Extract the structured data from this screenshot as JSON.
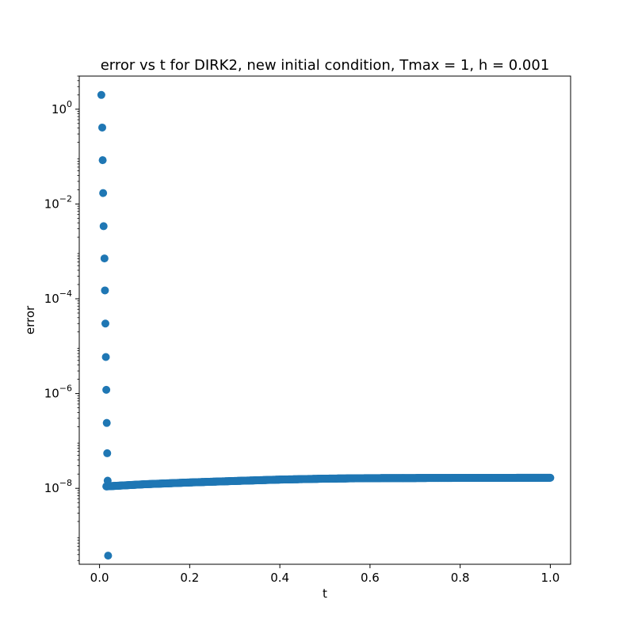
{
  "chart_data": {
    "type": "scatter",
    "title": "error vs t for DIRK2, new initial condition, Tmax = 1, h = 0.001",
    "xlabel": "t",
    "ylabel": "error",
    "yscale": "log",
    "xlim": [
      -0.045,
      1.045
    ],
    "ylim": [
      2.5e-10,
      5.0
    ],
    "x_ticks": [
      0.0,
      0.2,
      0.4,
      0.6,
      0.8,
      1.0
    ],
    "x_tick_labels": [
      "0.0",
      "0.2",
      "0.4",
      "0.6",
      "0.8",
      "1.0"
    ],
    "y_ticks": [
      1e-08,
      1e-06,
      0.0001,
      0.01,
      1
    ],
    "y_tick_labels": [
      {
        "base": "10",
        "exp": "−8"
      },
      {
        "base": "10",
        "exp": "−6"
      },
      {
        "base": "10",
        "exp": "−4"
      },
      {
        "base": "10",
        "exp": "−2"
      },
      {
        "base": "10",
        "exp": "0"
      }
    ],
    "grid": false,
    "series": [
      {
        "color": "#1f77b4",
        "transient": {
          "x": [
            0.004,
            0.006,
            0.007,
            0.008,
            0.009,
            0.011,
            0.012,
            0.013,
            0.014,
            0.015,
            0.016,
            0.017,
            0.018,
            0.019
          ],
          "y": [
            2.0,
            0.41,
            0.084,
            0.017,
            0.0034,
            0.00071,
            0.00015,
            3e-05,
            5.9e-06,
            1.2e-06,
            2.4e-07,
            5.5e-08,
            1.45e-08,
            3.8e-10
          ]
        },
        "steady": {
          "t_start": 0.015,
          "t_end": 1.0,
          "step": 0.001,
          "note_curve": [
            {
              "t": 0.015,
              "y": 1.1e-08
            },
            {
              "t": 0.1,
              "y": 1.22e-08
            },
            {
              "t": 0.2,
              "y": 1.33e-08
            },
            {
              "t": 0.3,
              "y": 1.43e-08
            },
            {
              "t": 0.4,
              "y": 1.53e-08
            },
            {
              "t": 0.5,
              "y": 1.6e-08
            },
            {
              "t": 0.6,
              "y": 1.64e-08
            },
            {
              "t": 0.8,
              "y": 1.66e-08
            },
            {
              "t": 1.0,
              "y": 1.67e-08
            }
          ]
        }
      }
    ]
  }
}
